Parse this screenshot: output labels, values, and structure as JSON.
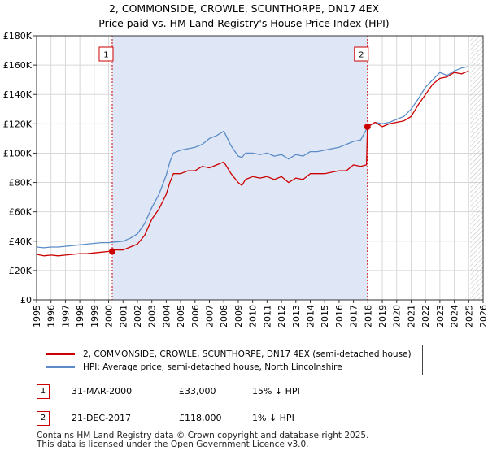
{
  "chart_data": {
    "type": "line",
    "title_line1": "2, COMMONSIDE, CROWLE, SCUNTHORPE, DN17 4EX",
    "title_line2": "Price paid vs. HM Land Registry's House Price Index (HPI)",
    "xlim": [
      1995,
      2026
    ],
    "ylim": [
      0,
      180000
    ],
    "y_ticks": [
      0,
      20000,
      40000,
      60000,
      80000,
      100000,
      120000,
      140000,
      160000,
      180000
    ],
    "y_tick_labels": [
      "£0",
      "£20K",
      "£40K",
      "£60K",
      "£80K",
      "£100K",
      "£120K",
      "£140K",
      "£160K",
      "£180K"
    ],
    "x_ticks": [
      1995,
      1996,
      1997,
      1998,
      1999,
      2000,
      2001,
      2002,
      2003,
      2004,
      2005,
      2006,
      2007,
      2008,
      2009,
      2010,
      2011,
      2012,
      2013,
      2014,
      2015,
      2016,
      2017,
      2018,
      2019,
      2020,
      2021,
      2022,
      2023,
      2024,
      2025,
      2026
    ],
    "x_tick_labels": [
      "1995",
      "1996",
      "1997",
      "1998",
      "1999",
      "2000",
      "2001",
      "2002",
      "2003",
      "2004",
      "2005",
      "2006",
      "2007",
      "2008",
      "2009",
      "2010",
      "2011",
      "2012",
      "2013",
      "2014",
      "2015",
      "2016",
      "2017",
      "2018",
      "2019",
      "2020",
      "2021",
      "2022",
      "2023",
      "2024",
      "2025",
      "2026"
    ],
    "grid": true,
    "shaded_region": [
      2000.25,
      2017.97
    ],
    "hatched_after": 2025.1,
    "series": [
      {
        "name": "2, COMMONSIDE, CROWLE, SCUNTHORPE, DN17 4EX (semi-detached house)",
        "color": "#cc0000",
        "x": [
          1995.0,
          1995.5,
          1996.0,
          1996.5,
          1997.0,
          1997.5,
          1998.0,
          1998.5,
          1999.0,
          1999.5,
          2000.0,
          2000.25,
          2000.5,
          2001.0,
          2001.5,
          2002.0,
          2002.5,
          2003.0,
          2003.5,
          2004.0,
          2004.25,
          2004.5,
          2005.0,
          2005.5,
          2006.0,
          2006.5,
          2007.0,
          2007.5,
          2008.0,
          2008.25,
          2008.5,
          2009.0,
          2009.25,
          2009.5,
          2010.0,
          2010.5,
          2011.0,
          2011.5,
          2012.0,
          2012.5,
          2013.0,
          2013.5,
          2014.0,
          2014.5,
          2015.0,
          2015.5,
          2016.0,
          2016.5,
          2017.0,
          2017.5,
          2017.9,
          2017.97,
          2018.5,
          2019.0,
          2019.5,
          2020.0,
          2020.5,
          2021.0,
          2021.5,
          2022.0,
          2022.5,
          2023.0,
          2023.5,
          2024.0,
          2024.5,
          2025.0
        ],
        "values": [
          31000,
          30000,
          30500,
          30000,
          30500,
          31000,
          31500,
          31500,
          32000,
          32500,
          33000,
          33000,
          34000,
          34000,
          36000,
          38000,
          44000,
          55000,
          62000,
          72000,
          80000,
          86000,
          86000,
          88000,
          88000,
          91000,
          90000,
          92000,
          94000,
          90000,
          86000,
          80000,
          78000,
          82000,
          84000,
          83000,
          84000,
          82000,
          84000,
          80000,
          83000,
          82000,
          86000,
          86000,
          86000,
          87000,
          88000,
          88000,
          92000,
          91000,
          92000,
          118000,
          121000,
          118000,
          120000,
          121000,
          122000,
          125000,
          133000,
          140000,
          147000,
          151000,
          152000,
          155000,
          154000,
          156000
        ]
      },
      {
        "name": "HPI: Average price, semi-detached house, North Lincolnshire",
        "color": "#5b8cc8",
        "x": [
          1995.0,
          1995.5,
          1996.0,
          1996.5,
          1997.0,
          1997.5,
          1998.0,
          1998.5,
          1999.0,
          1999.5,
          2000.0,
          2000.5,
          2001.0,
          2001.5,
          2002.0,
          2002.5,
          2003.0,
          2003.5,
          2004.0,
          2004.25,
          2004.5,
          2005.0,
          2005.5,
          2006.0,
          2006.5,
          2007.0,
          2007.5,
          2008.0,
          2008.25,
          2008.5,
          2009.0,
          2009.25,
          2009.5,
          2010.0,
          2010.5,
          2011.0,
          2011.5,
          2012.0,
          2012.5,
          2013.0,
          2013.5,
          2014.0,
          2014.5,
          2015.0,
          2015.5,
          2016.0,
          2016.5,
          2017.0,
          2017.5,
          2018.0,
          2018.5,
          2019.0,
          2019.5,
          2020.0,
          2020.5,
          2021.0,
          2021.5,
          2022.0,
          2022.5,
          2023.0,
          2023.5,
          2024.0,
          2024.5,
          2025.0
        ],
        "values": [
          36000,
          35500,
          36000,
          36000,
          36500,
          37000,
          37500,
          38000,
          38500,
          39000,
          39000,
          39500,
          40000,
          42000,
          45000,
          52000,
          63000,
          72000,
          85000,
          94000,
          100000,
          102000,
          103000,
          104000,
          106000,
          110000,
          112000,
          115000,
          110000,
          105000,
          98000,
          97000,
          100000,
          100000,
          99000,
          100000,
          98000,
          99000,
          96000,
          99000,
          98000,
          101000,
          101000,
          102000,
          103000,
          104000,
          106000,
          108000,
          109000,
          118000,
          121000,
          120000,
          121000,
          123000,
          125000,
          130000,
          137000,
          145000,
          150000,
          155000,
          153000,
          156000,
          158000,
          159000
        ]
      }
    ],
    "markers": [
      {
        "label": "1",
        "x": 2000.25,
        "y": 33000
      },
      {
        "label": "2",
        "x": 2017.97,
        "y": 118000
      }
    ]
  },
  "legend": {
    "property_label": "2, COMMONSIDE, CROWLE, SCUNTHORPE, DN17 4EX (semi-detached house)",
    "hpi_label": "HPI: Average price, semi-detached house, North Lincolnshire"
  },
  "transactions": [
    {
      "num": "1",
      "date": "31-MAR-2000",
      "price": "£33,000",
      "hpi": "15% ↓ HPI"
    },
    {
      "num": "2",
      "date": "21-DEC-2017",
      "price": "£118,000",
      "hpi": "1% ↓ HPI"
    }
  ],
  "footer": {
    "line1": "Contains HM Land Registry data © Crown copyright and database right 2025.",
    "line2": "This data is licensed under the Open Government Licence v3.0."
  },
  "colors": {
    "property": "#cc0000",
    "hpi": "#5b8cc8",
    "shade": "#dfe6f5",
    "grid": "#d8d8d8"
  }
}
